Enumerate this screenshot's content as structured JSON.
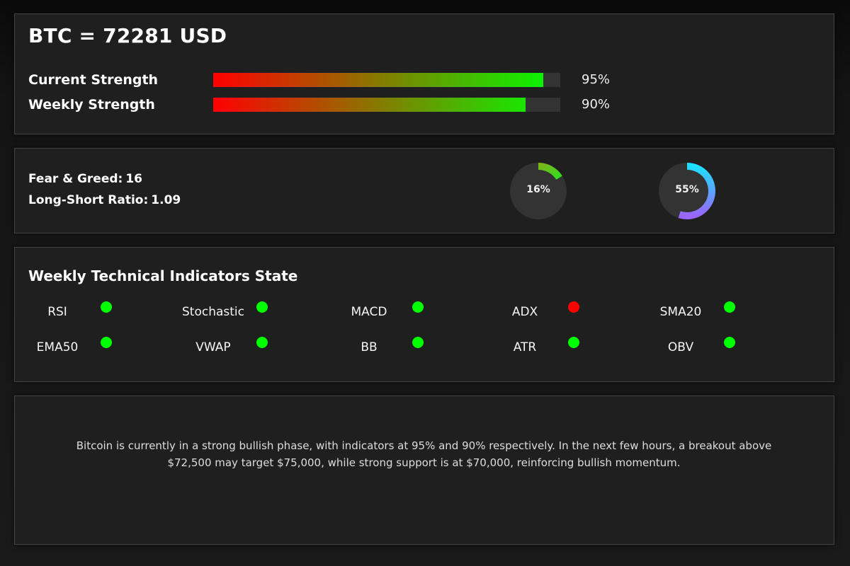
{
  "header": {
    "title": "BTC = 72281 USD",
    "strengths": [
      {
        "label": "Current Strength",
        "value": 95,
        "display": "95%"
      },
      {
        "label": "Weekly Strength",
        "value": 90,
        "display": "90%"
      }
    ]
  },
  "sentiment": {
    "fear_greed_label": "Fear & Greed:",
    "fear_greed_value": "16",
    "long_short_label": "Long-Short Ratio:",
    "long_short_value": "1.09",
    "gauges": [
      {
        "value": 16,
        "display": "16%",
        "colors": [
          "#7cb518",
          "#33dd22"
        ]
      },
      {
        "value": 55,
        "display": "55%",
        "colors": [
          "#1ee0ff",
          "#9966ff"
        ]
      }
    ]
  },
  "indicators": {
    "title": "Weekly Technical Indicators State",
    "items": [
      {
        "label": "RSI",
        "state": "bullish"
      },
      {
        "label": "Stochastic",
        "state": "bullish"
      },
      {
        "label": "MACD",
        "state": "bullish"
      },
      {
        "label": "ADX",
        "state": "bearish"
      },
      {
        "label": "SMA20",
        "state": "bullish"
      },
      {
        "label": "EMA50",
        "state": "bullish"
      },
      {
        "label": "VWAP",
        "state": "bullish"
      },
      {
        "label": "BB",
        "state": "bullish"
      },
      {
        "label": "ATR",
        "state": "bullish"
      },
      {
        "label": "OBV",
        "state": "bullish"
      }
    ],
    "state_colors": {
      "bullish": "#00ff00",
      "bearish": "#ff0000"
    }
  },
  "summary": {
    "text": "Bitcoin is currently in a strong bullish phase, with indicators at 95% and 90% respectively. In the next few hours, a breakout above $72,500 may target $75,000, while strong support is at $70,000, reinforcing bullish momentum."
  }
}
